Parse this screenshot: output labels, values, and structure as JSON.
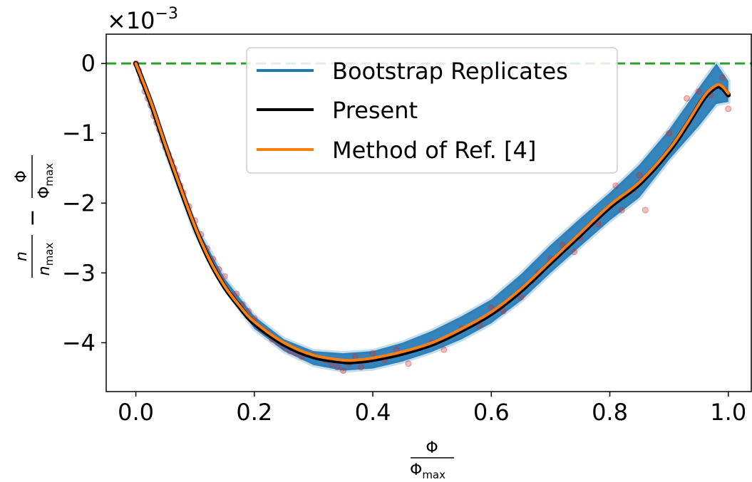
{
  "chart_data": {
    "type": "line",
    "title": "",
    "xlabel": {
      "num": "Φ",
      "den_main": "Φ",
      "den_sub": "max"
    },
    "ylabel": {
      "t1_num": "n",
      "t1_den_main": "n",
      "t1_den_sub": "max",
      "minus": "−",
      "t2_num": "Φ",
      "t2_den_main": "Φ",
      "t2_den_sub": "max"
    },
    "y_scale_label": {
      "base": "×10",
      "exponent": "−3"
    },
    "xlim": [
      -0.05,
      1.04
    ],
    "ylim": [
      -4.7,
      0.42
    ],
    "x_ticks": [
      0.0,
      0.2,
      0.4,
      0.6,
      0.8,
      1.0
    ],
    "x_tick_labels": [
      "0.0",
      "0.2",
      "0.4",
      "0.6",
      "0.8",
      "1.0"
    ],
    "y_ticks": [
      0,
      -1,
      -2,
      -3,
      -4
    ],
    "y_tick_labels": [
      "0",
      "−1",
      "−2",
      "−3",
      "−4"
    ],
    "reference_line": {
      "y": 0,
      "style": "dashed",
      "color": "#2ca02c"
    },
    "legend": {
      "placement": "top-center",
      "entries": [
        {
          "label": "Bootstrap Replicates",
          "color": "#1f77b4"
        },
        {
          "label": "Present",
          "color": "#000000"
        },
        {
          "label": "Method of Ref. [4]",
          "color": "#ff7f0e"
        }
      ]
    },
    "series": [
      {
        "name": "Bootstrap Replicates",
        "kind": "band",
        "color": "#1f77b4",
        "x": [
          0.0,
          0.05,
          0.1,
          0.15,
          0.2,
          0.25,
          0.3,
          0.35,
          0.4,
          0.45,
          0.5,
          0.55,
          0.6,
          0.65,
          0.7,
          0.75,
          0.8,
          0.85,
          0.9,
          0.95,
          0.98,
          1.0
        ],
        "lower": [
          0.0,
          -1.25,
          -2.42,
          -3.22,
          -3.8,
          -4.12,
          -4.32,
          -4.4,
          -4.37,
          -4.27,
          -4.13,
          -3.95,
          -3.72,
          -3.4,
          -3.0,
          -2.62,
          -2.25,
          -1.92,
          -1.38,
          -0.9,
          -0.58,
          -0.55
        ],
        "upper": [
          0.0,
          -1.15,
          -2.3,
          -3.08,
          -3.62,
          -3.95,
          -4.12,
          -4.15,
          -4.12,
          -4.0,
          -3.83,
          -3.62,
          -3.38,
          -3.02,
          -2.6,
          -2.22,
          -1.85,
          -1.45,
          -0.95,
          -0.35,
          0.0,
          -0.25
        ]
      },
      {
        "name": "Present",
        "color": "#000000",
        "x": [
          0.0,
          0.025,
          0.05,
          0.075,
          0.1,
          0.125,
          0.15,
          0.175,
          0.2,
          0.25,
          0.3,
          0.35,
          0.37,
          0.4,
          0.45,
          0.5,
          0.55,
          0.6,
          0.65,
          0.7,
          0.75,
          0.8,
          0.85,
          0.9,
          0.93,
          0.96,
          0.98,
          0.99,
          1.0
        ],
        "y": [
          0.0,
          -0.55,
          -1.18,
          -1.78,
          -2.35,
          -2.83,
          -3.2,
          -3.48,
          -3.72,
          -4.02,
          -4.2,
          -4.27,
          -4.27,
          -4.24,
          -4.15,
          -4.02,
          -3.82,
          -3.58,
          -3.25,
          -2.85,
          -2.45,
          -2.05,
          -1.72,
          -1.25,
          -0.88,
          -0.48,
          -0.33,
          -0.35,
          -0.45
        ]
      },
      {
        "name": "Method of Ref. [4]",
        "color": "#ff7f0e",
        "x": [
          0.0,
          0.025,
          0.05,
          0.075,
          0.1,
          0.125,
          0.15,
          0.175,
          0.2,
          0.25,
          0.3,
          0.35,
          0.37,
          0.4,
          0.45,
          0.5,
          0.55,
          0.6,
          0.65,
          0.7,
          0.75,
          0.8,
          0.85,
          0.9,
          0.93,
          0.96,
          0.98,
          0.99,
          1.0
        ],
        "y": [
          0.0,
          -0.54,
          -1.17,
          -1.77,
          -2.34,
          -2.82,
          -3.19,
          -3.47,
          -3.7,
          -4.0,
          -4.18,
          -4.25,
          -4.25,
          -4.22,
          -4.13,
          -4.0,
          -3.8,
          -3.56,
          -3.23,
          -2.83,
          -2.43,
          -2.03,
          -1.7,
          -1.23,
          -0.86,
          -0.46,
          -0.31,
          -0.33,
          -0.43
        ]
      },
      {
        "name": "",
        "kind": "scatter",
        "color": "#d62728",
        "x": [
          0.0,
          0.005,
          0.01,
          0.015,
          0.02,
          0.025,
          0.03,
          0.035,
          0.04,
          0.045,
          0.05,
          0.055,
          0.06,
          0.065,
          0.07,
          0.075,
          0.08,
          0.09,
          0.1,
          0.11,
          0.12,
          0.13,
          0.14,
          0.15,
          0.17,
          0.18,
          0.19,
          0.2,
          0.21,
          0.22,
          0.23,
          0.24,
          0.25,
          0.26,
          0.27,
          0.28,
          0.3,
          0.32,
          0.33,
          0.34,
          0.35,
          0.36,
          0.37,
          0.38,
          0.4,
          0.42,
          0.44,
          0.46,
          0.5,
          0.52,
          0.55,
          0.58,
          0.6,
          0.62,
          0.65,
          0.67,
          0.68,
          0.7,
          0.72,
          0.74,
          0.75,
          0.78,
          0.8,
          0.81,
          0.82,
          0.84,
          0.85,
          0.86,
          0.9,
          0.93,
          0.95,
          0.97,
          0.99,
          1.0
        ],
        "y": [
          0.0,
          -0.1,
          -0.25,
          -0.4,
          -0.5,
          -0.6,
          -0.75,
          -0.85,
          -0.95,
          -1.1,
          -1.2,
          -1.3,
          -1.4,
          -1.5,
          -1.6,
          -1.75,
          -1.85,
          -2.05,
          -2.25,
          -2.45,
          -2.65,
          -2.8,
          -2.95,
          -3.05,
          -3.3,
          -3.45,
          -3.55,
          -3.65,
          -3.8,
          -3.85,
          -3.95,
          -4.0,
          -4.05,
          -4.12,
          -4.15,
          -4.2,
          -4.18,
          -4.25,
          -4.3,
          -4.35,
          -4.4,
          -4.3,
          -4.2,
          -4.35,
          -4.15,
          -4.25,
          -4.1,
          -4.3,
          -4.0,
          -4.1,
          -3.8,
          -3.75,
          -3.5,
          -3.55,
          -3.35,
          -3.1,
          -3.0,
          -2.8,
          -2.6,
          -2.7,
          -2.5,
          -2.3,
          -2.05,
          -1.75,
          -2.1,
          -1.8,
          -1.6,
          -2.1,
          -1.0,
          -0.5,
          -0.4,
          -0.45,
          -0.2,
          -0.65
        ]
      }
    ]
  }
}
